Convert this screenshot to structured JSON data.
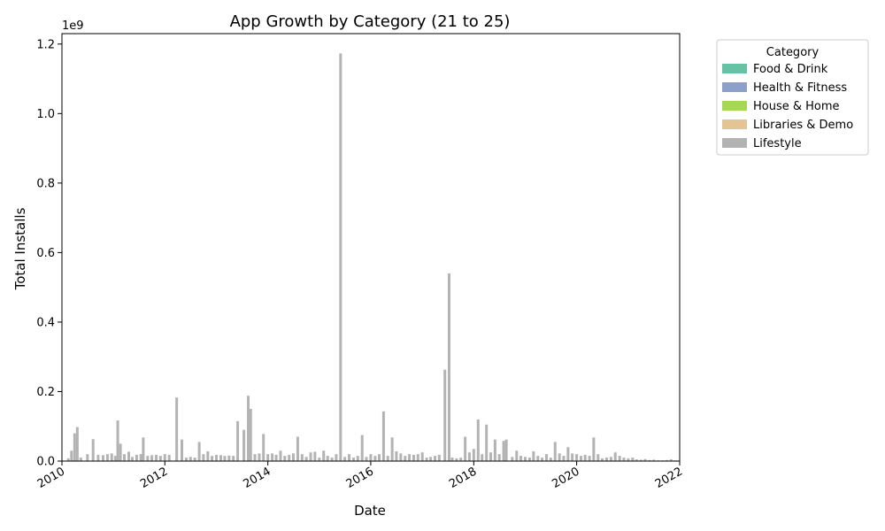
{
  "chart_data": {
    "type": "bar",
    "title": "App Growth by Category (21 to 25)",
    "xlabel": "Date",
    "ylabel": "Total Installs",
    "y_offset_label": "1e9",
    "y_unit_multiplier": 1000000000,
    "ylim": [
      0,
      1.23
    ],
    "xlim": [
      "2010-01-01",
      "2022-01-01"
    ],
    "x_ticks": [
      "2010",
      "2012",
      "2014",
      "2016",
      "2018",
      "2020",
      "2022"
    ],
    "y_ticks": [
      "0.0",
      "0.2",
      "0.4",
      "0.6",
      "0.8",
      "1.0",
      "1.2"
    ],
    "grid": false,
    "legend": {
      "title": "Category",
      "placement": "outside-top-right",
      "entries": [
        {
          "label": "Food & Drink",
          "color": "#66c2a5"
        },
        {
          "label": "Health & Fitness",
          "color": "#8da0cb"
        },
        {
          "label": "House & Home",
          "color": "#a6d854"
        },
        {
          "label": "Libraries & Demo",
          "color": "#e5c494"
        },
        {
          "label": "Lifestyle",
          "color": "#b3b3b3"
        }
      ]
    },
    "series": [
      {
        "name": "Lifestyle",
        "color": "#b3b3b3",
        "points": [
          [
            "2010-02-15",
            0.008
          ],
          [
            "2010-03-10",
            0.03
          ],
          [
            "2010-04-01",
            0.08
          ],
          [
            "2010-04-20",
            0.098
          ],
          [
            "2010-05-15",
            0.01
          ],
          [
            "2010-07-01",
            0.02
          ],
          [
            "2010-08-10",
            0.063
          ],
          [
            "2010-09-15",
            0.018
          ],
          [
            "2010-10-20",
            0.017
          ],
          [
            "2010-11-20",
            0.02
          ],
          [
            "2010-12-20",
            0.022
          ],
          [
            "2011-01-15",
            0.015
          ],
          [
            "2011-02-01",
            0.117
          ],
          [
            "2011-02-20",
            0.05
          ],
          [
            "2011-03-20",
            0.02
          ],
          [
            "2011-04-20",
            0.027
          ],
          [
            "2011-05-15",
            0.012
          ],
          [
            "2011-06-15",
            0.018
          ],
          [
            "2011-07-15",
            0.02
          ],
          [
            "2011-08-01",
            0.068
          ],
          [
            "2011-09-01",
            0.015
          ],
          [
            "2011-10-01",
            0.017
          ],
          [
            "2011-11-01",
            0.018
          ],
          [
            "2011-12-01",
            0.015
          ],
          [
            "2012-01-01",
            0.02
          ],
          [
            "2012-02-01",
            0.018
          ],
          [
            "2012-03-25",
            0.183
          ],
          [
            "2012-05-01",
            0.062
          ],
          [
            "2012-06-01",
            0.01
          ],
          [
            "2012-07-01",
            0.012
          ],
          [
            "2012-08-01",
            0.01
          ],
          [
            "2012-09-01",
            0.055
          ],
          [
            "2012-10-01",
            0.02
          ],
          [
            "2012-11-01",
            0.028
          ],
          [
            "2012-12-01",
            0.015
          ],
          [
            "2013-01-01",
            0.018
          ],
          [
            "2013-02-01",
            0.017
          ],
          [
            "2013-03-01",
            0.015
          ],
          [
            "2013-04-01",
            0.016
          ],
          [
            "2013-05-01",
            0.015
          ],
          [
            "2013-06-01",
            0.115
          ],
          [
            "2013-07-15",
            0.09
          ],
          [
            "2013-08-15",
            0.188
          ],
          [
            "2013-09-01",
            0.15
          ],
          [
            "2013-10-01",
            0.02
          ],
          [
            "2013-11-01",
            0.022
          ],
          [
            "2013-12-01",
            0.078
          ],
          [
            "2014-01-01",
            0.02
          ],
          [
            "2014-02-01",
            0.022
          ],
          [
            "2014-03-01",
            0.018
          ],
          [
            "2014-04-01",
            0.03
          ],
          [
            "2014-05-01",
            0.015
          ],
          [
            "2014-06-01",
            0.018
          ],
          [
            "2014-07-01",
            0.022
          ],
          [
            "2014-08-01",
            0.07
          ],
          [
            "2014-09-01",
            0.02
          ],
          [
            "2014-10-01",
            0.012
          ],
          [
            "2014-11-01",
            0.025
          ],
          [
            "2014-12-01",
            0.027
          ],
          [
            "2015-01-01",
            0.01
          ],
          [
            "2015-02-01",
            0.03
          ],
          [
            "2015-03-01",
            0.015
          ],
          [
            "2015-04-01",
            0.01
          ],
          [
            "2015-05-01",
            0.02
          ],
          [
            "2015-06-01",
            1.173
          ],
          [
            "2015-07-01",
            0.012
          ],
          [
            "2015-08-01",
            0.02
          ],
          [
            "2015-09-01",
            0.01
          ],
          [
            "2015-10-01",
            0.015
          ],
          [
            "2015-11-01",
            0.075
          ],
          [
            "2015-12-01",
            0.012
          ],
          [
            "2016-01-01",
            0.02
          ],
          [
            "2016-02-01",
            0.015
          ],
          [
            "2016-03-01",
            0.02
          ],
          [
            "2016-04-01",
            0.143
          ],
          [
            "2016-05-01",
            0.015
          ],
          [
            "2016-06-01",
            0.068
          ],
          [
            "2016-07-01",
            0.028
          ],
          [
            "2016-08-01",
            0.022
          ],
          [
            "2016-09-01",
            0.015
          ],
          [
            "2016-10-01",
            0.02
          ],
          [
            "2016-11-01",
            0.018
          ],
          [
            "2016-12-01",
            0.02
          ],
          [
            "2017-01-01",
            0.025
          ],
          [
            "2017-02-01",
            0.01
          ],
          [
            "2017-03-01",
            0.012
          ],
          [
            "2017-04-01",
            0.015
          ],
          [
            "2017-05-01",
            0.018
          ],
          [
            "2017-06-10",
            0.263
          ],
          [
            "2017-07-10",
            0.54
          ],
          [
            "2017-08-01",
            0.01
          ],
          [
            "2017-09-01",
            0.008
          ],
          [
            "2017-10-01",
            0.01
          ],
          [
            "2017-11-01",
            0.07
          ],
          [
            "2017-12-01",
            0.025
          ],
          [
            "2018-01-01",
            0.035
          ],
          [
            "2018-02-01",
            0.12
          ],
          [
            "2018-03-01",
            0.02
          ],
          [
            "2018-04-01",
            0.105
          ],
          [
            "2018-05-01",
            0.025
          ],
          [
            "2018-06-01",
            0.062
          ],
          [
            "2018-07-01",
            0.02
          ],
          [
            "2018-08-01",
            0.058
          ],
          [
            "2018-08-20",
            0.062
          ],
          [
            "2018-10-01",
            0.012
          ],
          [
            "2018-11-01",
            0.03
          ],
          [
            "2018-12-01",
            0.015
          ],
          [
            "2019-01-01",
            0.012
          ],
          [
            "2019-02-01",
            0.01
          ],
          [
            "2019-03-01",
            0.028
          ],
          [
            "2019-04-01",
            0.015
          ],
          [
            "2019-05-01",
            0.01
          ],
          [
            "2019-06-01",
            0.02
          ],
          [
            "2019-07-01",
            0.01
          ],
          [
            "2019-08-01",
            0.055
          ],
          [
            "2019-09-01",
            0.022
          ],
          [
            "2019-10-01",
            0.015
          ],
          [
            "2019-11-01",
            0.04
          ],
          [
            "2019-12-01",
            0.022
          ],
          [
            "2020-01-01",
            0.02
          ],
          [
            "2020-02-01",
            0.015
          ],
          [
            "2020-03-01",
            0.018
          ],
          [
            "2020-04-01",
            0.015
          ],
          [
            "2020-05-01",
            0.068
          ],
          [
            "2020-06-01",
            0.02
          ],
          [
            "2020-07-01",
            0.008
          ],
          [
            "2020-08-01",
            0.01
          ],
          [
            "2020-09-01",
            0.012
          ],
          [
            "2020-10-01",
            0.025
          ],
          [
            "2020-11-01",
            0.015
          ],
          [
            "2020-12-01",
            0.01
          ],
          [
            "2021-01-01",
            0.008
          ],
          [
            "2021-02-01",
            0.01
          ],
          [
            "2021-03-01",
            0.005
          ],
          [
            "2021-04-01",
            0.004
          ],
          [
            "2021-05-01",
            0.006
          ],
          [
            "2021-06-01",
            0.003
          ],
          [
            "2021-07-01",
            0.004
          ],
          [
            "2021-08-01",
            0.002
          ],
          [
            "2021-09-01",
            0.002
          ],
          [
            "2021-10-01",
            0.003
          ],
          [
            "2021-11-01",
            0.005
          ],
          [
            "2021-12-01",
            0.002
          ]
        ]
      }
    ]
  }
}
